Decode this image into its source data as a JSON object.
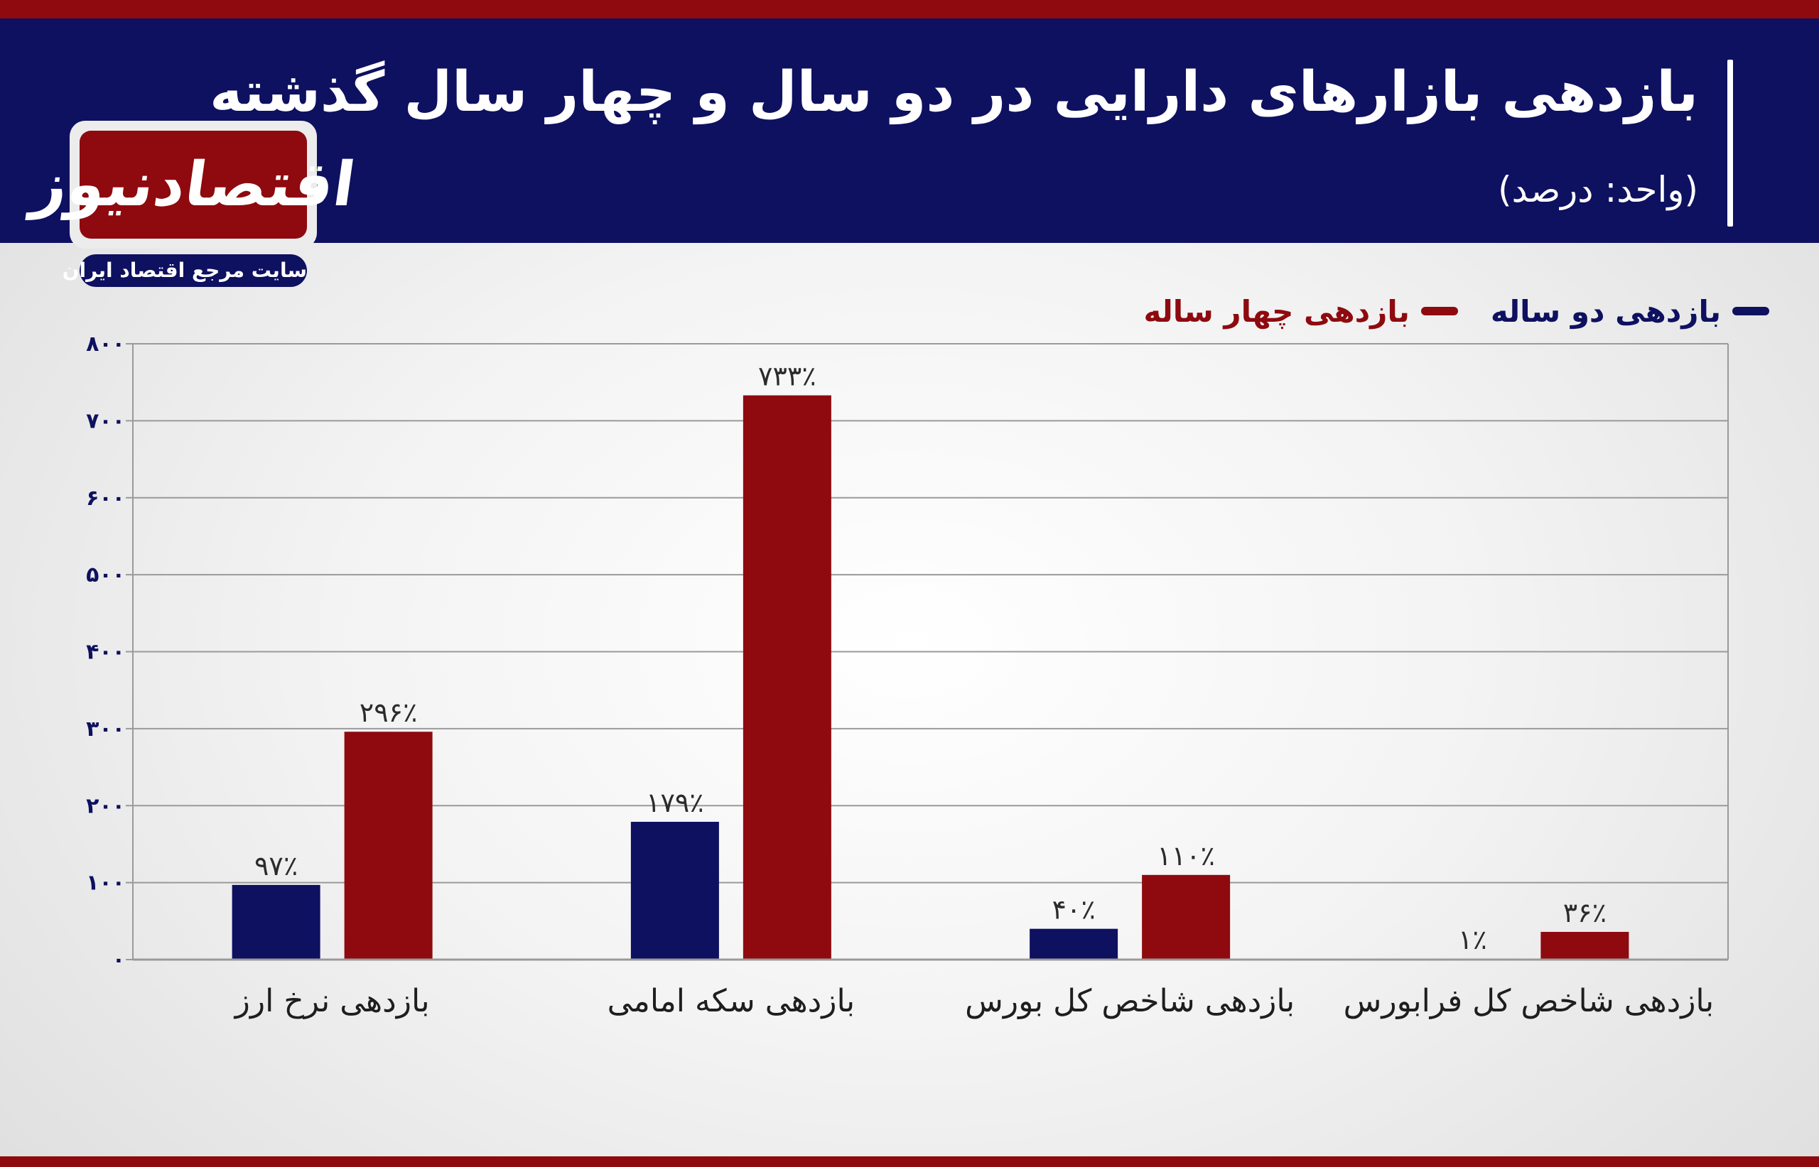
{
  "header": {
    "title": "بازدهی بازارهای دارایی در دو سال و چهار سال گذشته",
    "subtitle": "(واحد: درصد)"
  },
  "brand": {
    "logo_text": "اقتصادنیوز",
    "tagline": "سایت مرجع اقتصاد ایران"
  },
  "colors": {
    "header_bg": "#0e1060",
    "accent_red": "#8e0a0f",
    "series_two_year": "#0e1060",
    "series_four_year": "#8e0a0f"
  },
  "chart_data": {
    "type": "bar",
    "title": "بازدهی بازارهای دارایی در دو سال و چهار سال گذشته",
    "categories": [
      "بازدهی نرخ ارز",
      "بازدهی سکه امامی",
      "بازدهی شاخص کل بورس",
      "بازدهی شاخص کل فرابورس"
    ],
    "series": [
      {
        "name": "بازدهی دو ساله",
        "color": "#0e1060",
        "values": [
          97,
          179,
          40,
          1
        ],
        "labels": [
          "۹۷٪",
          "۱۷۹٪",
          "۴۰٪",
          "۱٪"
        ]
      },
      {
        "name": "بازدهی چهار ساله",
        "color": "#8e0a0f",
        "values": [
          296,
          733,
          110,
          36
        ],
        "labels": [
          "۲۹۶٪",
          "۷۳۳٪",
          "۱۱۰٪",
          "۳۶٪"
        ]
      }
    ],
    "ylim": [
      0,
      800
    ],
    "yticks": [
      0,
      100,
      200,
      300,
      400,
      500,
      600,
      700,
      800
    ],
    "ytick_labels": [
      "۰",
      "۱۰۰",
      "۲۰۰",
      "۳۰۰",
      "۴۰۰",
      "۵۰۰",
      "۶۰۰",
      "۷۰۰",
      "۸۰۰"
    ],
    "grid": true,
    "legend_position": "top-right"
  }
}
